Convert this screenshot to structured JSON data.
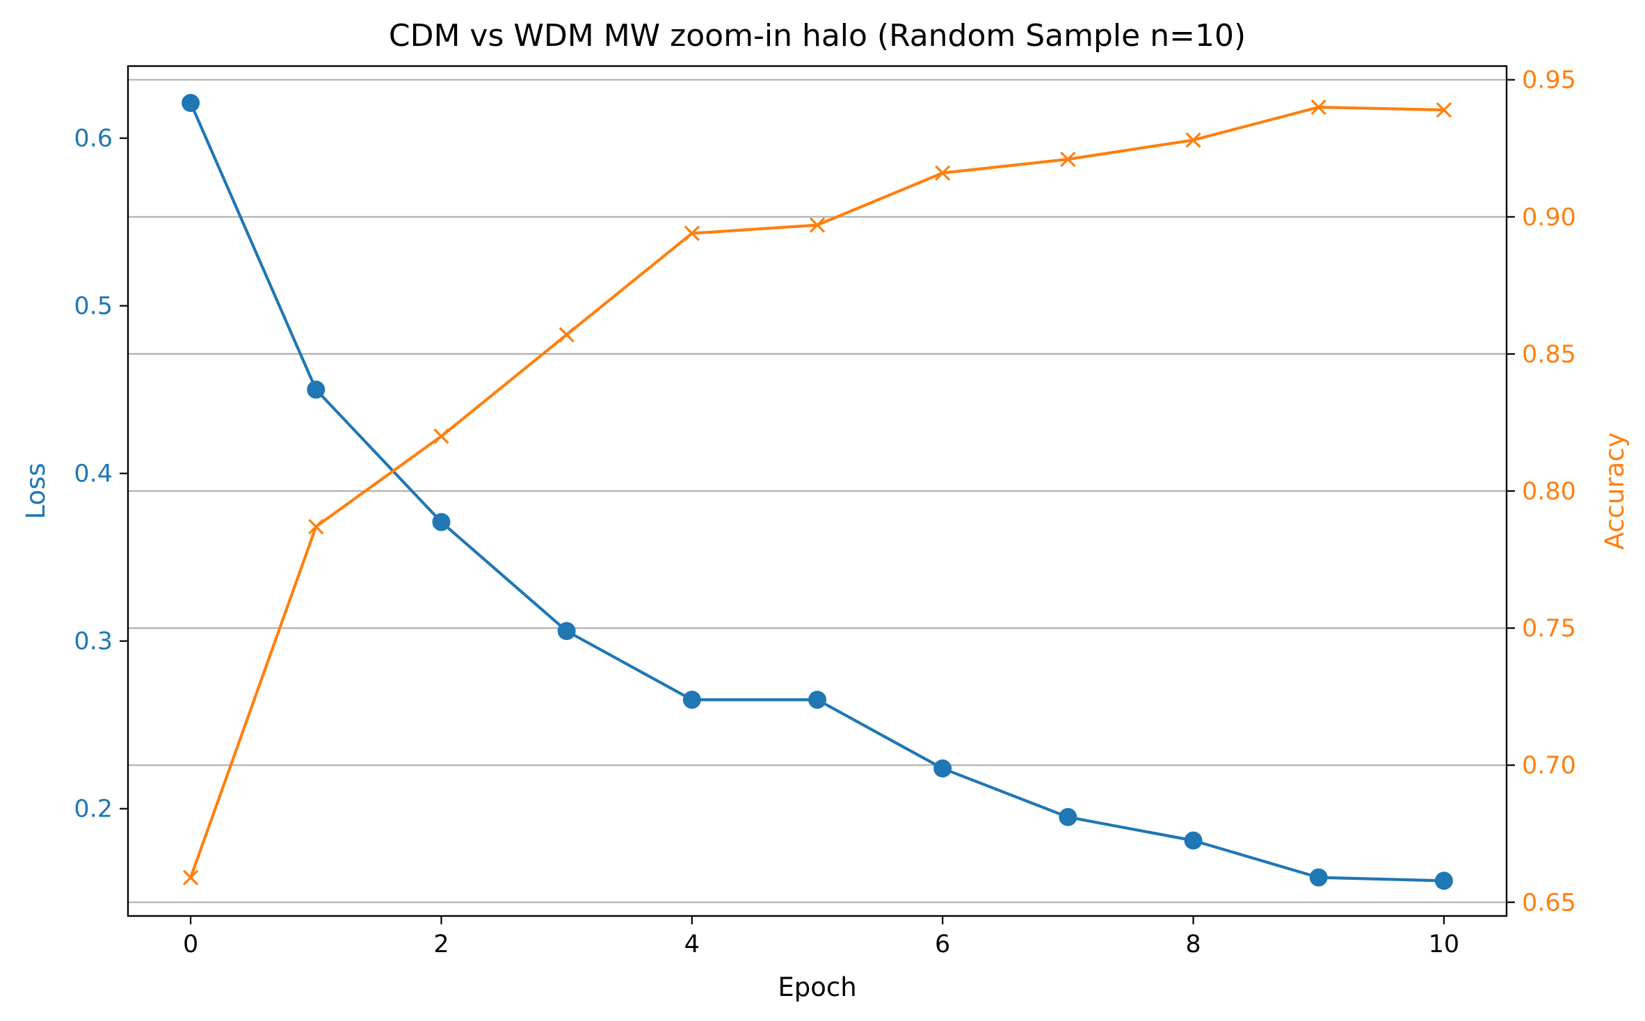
{
  "chart_data": {
    "type": "line",
    "title": "CDM vs WDM MW zoom-in halo (Random Sample n=10)",
    "xlabel": "Epoch",
    "ylabel_left": "Loss",
    "ylabel_right": "Accuracy",
    "x": [
      0,
      1,
      2,
      3,
      4,
      5,
      6,
      7,
      8,
      9,
      10
    ],
    "xlim": [
      -0.5,
      10.5
    ],
    "xticks": [
      0,
      2,
      4,
      6,
      8,
      10
    ],
    "xtick_labels": [
      "0",
      "2",
      "4",
      "6",
      "8",
      "10"
    ],
    "ylim_left": [
      0.136,
      0.643
    ],
    "yticks_left": [
      0.2,
      0.3,
      0.4,
      0.5,
      0.6
    ],
    "ytick_labels_left": [
      "0.2",
      "0.3",
      "0.4",
      "0.5",
      "0.6"
    ],
    "ylim_right": [
      0.645,
      0.955
    ],
    "yticks_right": [
      0.65,
      0.7,
      0.75,
      0.8,
      0.85,
      0.9,
      0.95
    ],
    "ytick_labels_right": [
      "0.65",
      "0.70",
      "0.75",
      "0.80",
      "0.85",
      "0.90",
      "0.95"
    ],
    "grid": "horizontal, right axis",
    "series": [
      {
        "axis": "left",
        "marker": "circle",
        "color": "#1f77b4",
        "values": [
          0.621,
          0.45,
          0.371,
          0.306,
          0.265,
          0.265,
          0.224,
          0.195,
          0.181,
          0.159,
          0.157
        ]
      },
      {
        "axis": "right",
        "marker": "x",
        "color": "#ff7f0e",
        "values": [
          0.659,
          0.787,
          0.82,
          0.857,
          0.894,
          0.897,
          0.916,
          0.921,
          0.928,
          0.94,
          0.939
        ]
      }
    ]
  }
}
